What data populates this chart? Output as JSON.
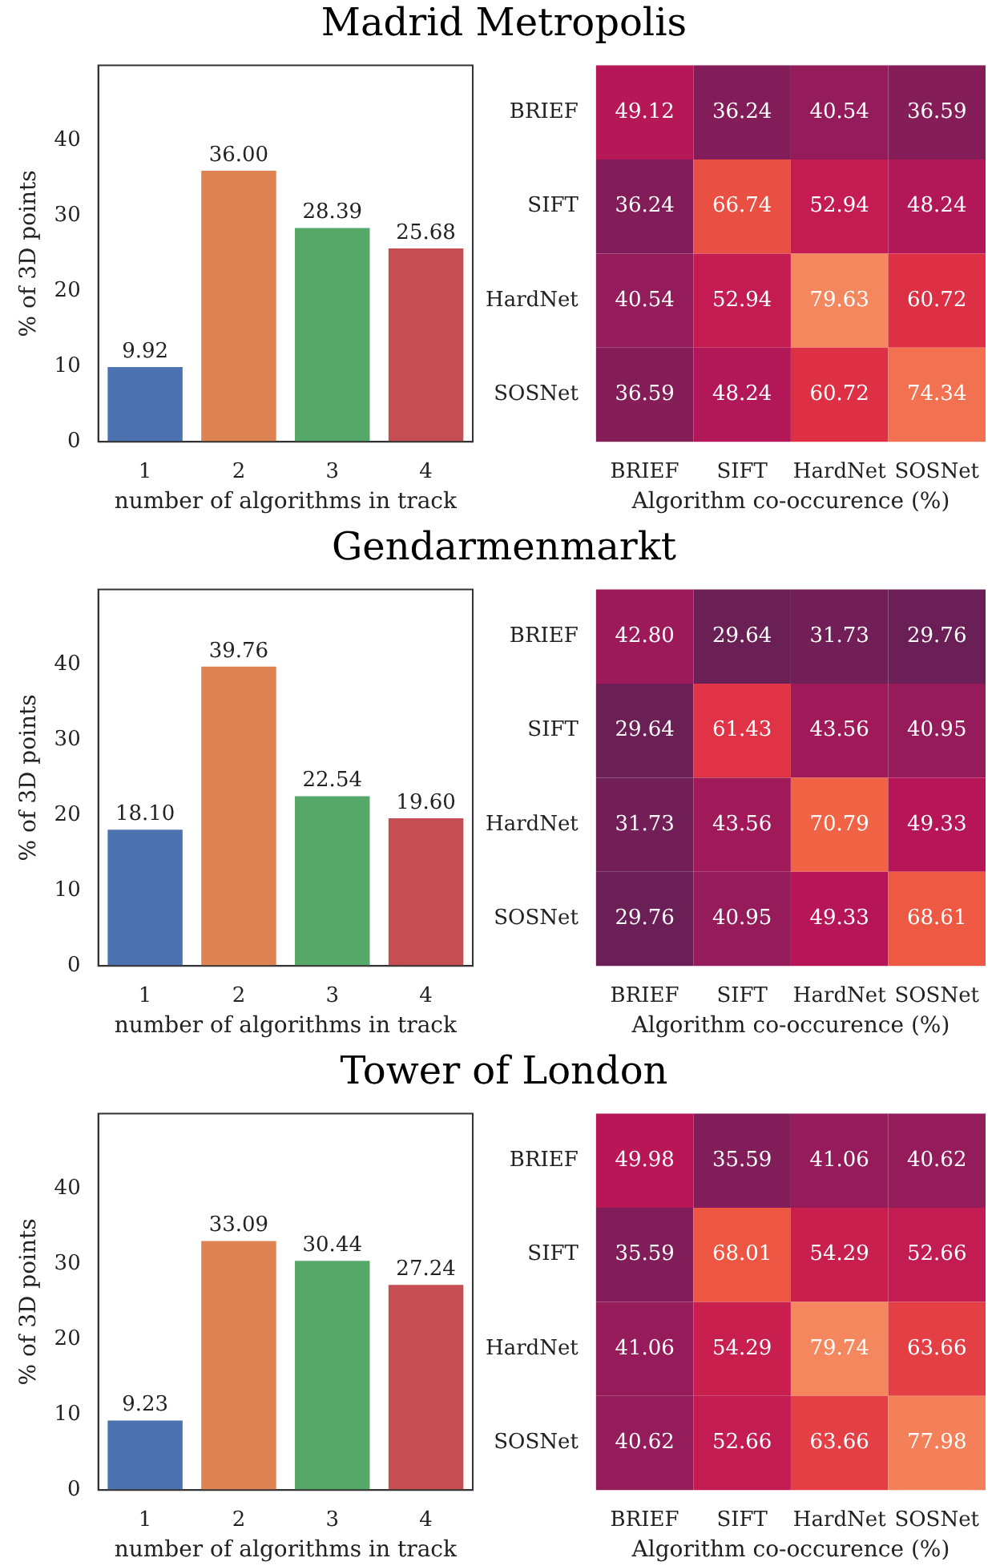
{
  "chart_data": [
    {
      "type": "bar",
      "title": "Madrid Metropolis",
      "xlabel": "number of algorithms in track",
      "ylabel": "% of 3D points",
      "categories": [
        "1",
        "2",
        "3",
        "4"
      ],
      "values": [
        9.92,
        36.0,
        28.39,
        25.68
      ],
      "value_labels": [
        "9.92",
        "36.00",
        "28.39",
        "25.68"
      ],
      "colors": [
        "#4c72b0",
        "#dd8452",
        "#55a868",
        "#c44e52"
      ],
      "ylim": [
        0,
        50
      ],
      "yticks": [
        0,
        10,
        20,
        30,
        40
      ]
    },
    {
      "type": "heatmap",
      "xlabel": "Algorithm co-occurence (%)",
      "categories": [
        "BRIEF",
        "SIFT",
        "HardNet",
        "SOSNet"
      ],
      "y_categories": [
        "BRIEF",
        "SIFT",
        "HardNet",
        "SOSNet"
      ],
      "cells": [
        [
          49.12,
          36.24,
          40.54,
          36.59
        ],
        [
          36.24,
          66.74,
          52.94,
          48.24
        ],
        [
          40.54,
          52.94,
          79.63,
          60.72
        ],
        [
          36.59,
          48.24,
          60.72,
          74.34
        ]
      ],
      "cell_labels": [
        [
          "49.12",
          "36.24",
          "40.54",
          "36.59"
        ],
        [
          "36.24",
          "66.74",
          "52.94",
          "48.24"
        ],
        [
          "40.54",
          "52.94",
          "79.63",
          "60.72"
        ],
        [
          "36.59",
          "48.24",
          "60.72",
          "74.34"
        ]
      ]
    },
    {
      "type": "bar",
      "title": "Gendarmenmarkt",
      "xlabel": "number of algorithms in track",
      "ylabel": "% of 3D points",
      "categories": [
        "1",
        "2",
        "3",
        "4"
      ],
      "values": [
        18.1,
        39.76,
        22.54,
        19.6
      ],
      "value_labels": [
        "18.10",
        "39.76",
        "22.54",
        "19.60"
      ],
      "colors": [
        "#4c72b0",
        "#dd8452",
        "#55a868",
        "#c44e52"
      ],
      "ylim": [
        0,
        50
      ],
      "yticks": [
        0,
        10,
        20,
        30,
        40
      ]
    },
    {
      "type": "heatmap",
      "xlabel": "Algorithm co-occurence (%)",
      "categories": [
        "BRIEF",
        "SIFT",
        "HardNet",
        "SOSNet"
      ],
      "y_categories": [
        "BRIEF",
        "SIFT",
        "HardNet",
        "SOSNet"
      ],
      "cells": [
        [
          42.8,
          29.64,
          31.73,
          29.76
        ],
        [
          29.64,
          61.43,
          43.56,
          40.95
        ],
        [
          31.73,
          43.56,
          70.79,
          49.33
        ],
        [
          29.76,
          40.95,
          49.33,
          68.61
        ]
      ],
      "cell_labels": [
        [
          "42.80",
          "29.64",
          "31.73",
          "29.76"
        ],
        [
          "29.64",
          "61.43",
          "43.56",
          "40.95"
        ],
        [
          "31.73",
          "43.56",
          "70.79",
          "49.33"
        ],
        [
          "29.76",
          "40.95",
          "49.33",
          "68.61"
        ]
      ]
    },
    {
      "type": "bar",
      "title": "Tower of London",
      "xlabel": "number of algorithms in track",
      "ylabel": "% of 3D points",
      "categories": [
        "1",
        "2",
        "3",
        "4"
      ],
      "values": [
        9.23,
        33.09,
        30.44,
        27.24
      ],
      "value_labels": [
        "9.23",
        "33.09",
        "30.44",
        "27.24"
      ],
      "colors": [
        "#4c72b0",
        "#dd8452",
        "#55a868",
        "#c44e52"
      ],
      "ylim": [
        0,
        50
      ],
      "yticks": [
        0,
        10,
        20,
        30,
        40
      ]
    },
    {
      "type": "heatmap",
      "xlabel": "Algorithm co-occurence (%)",
      "categories": [
        "BRIEF",
        "SIFT",
        "HardNet",
        "SOSNet"
      ],
      "y_categories": [
        "BRIEF",
        "SIFT",
        "HardNet",
        "SOSNet"
      ],
      "cells": [
        [
          49.98,
          35.59,
          41.06,
          40.62
        ],
        [
          35.59,
          68.01,
          54.29,
          52.66
        ],
        [
          41.06,
          54.29,
          79.74,
          63.66
        ],
        [
          40.62,
          52.66,
          63.66,
          77.98
        ]
      ],
      "cell_labels": [
        [
          "49.98",
          "35.59",
          "41.06",
          "40.62"
        ],
        [
          "35.59",
          "68.01",
          "54.29",
          "52.66"
        ],
        [
          "41.06",
          "54.29",
          "79.74",
          "63.66"
        ],
        [
          "40.62",
          "52.66",
          "63.66",
          "77.98"
        ]
      ]
    }
  ]
}
